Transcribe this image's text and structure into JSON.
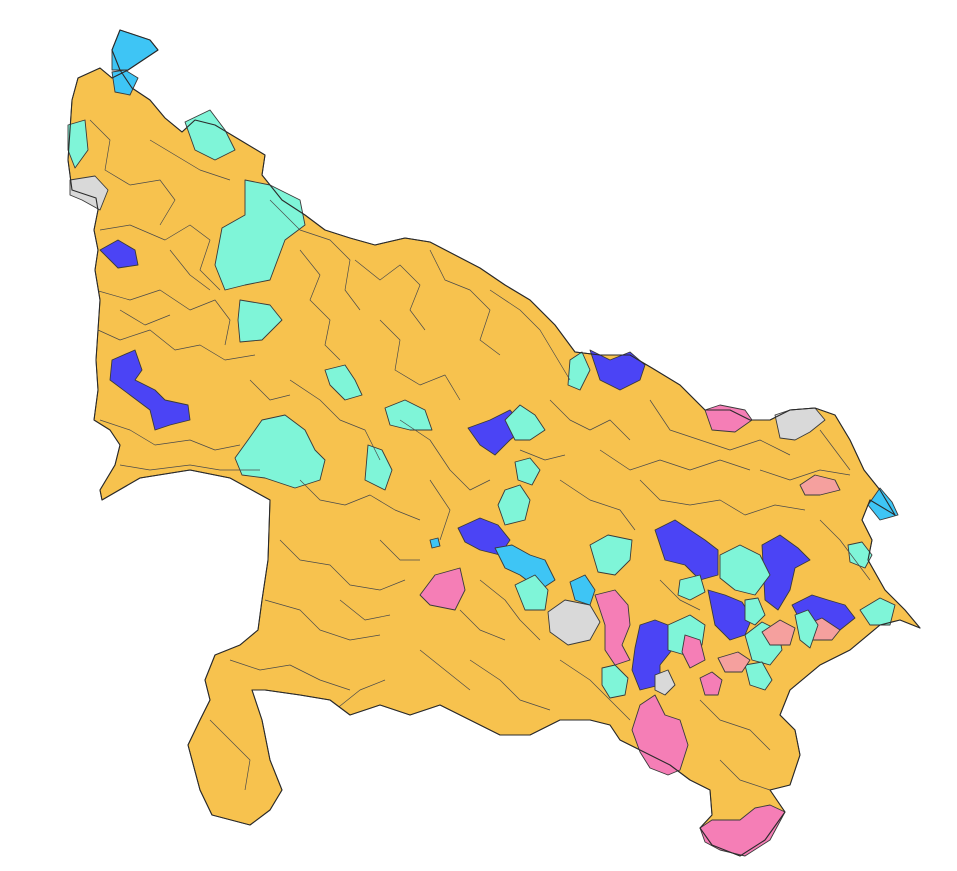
{
  "map": {
    "legend_colors": {
      "dominant": "#F7C24E",
      "secondary": "#7FF5D8",
      "blue": "#4B44F5",
      "cyan": "#3EC5F5",
      "pink": "#F57EB6",
      "salmon": "#F5A09E",
      "grey": "#D9D9D9"
    }
  }
}
